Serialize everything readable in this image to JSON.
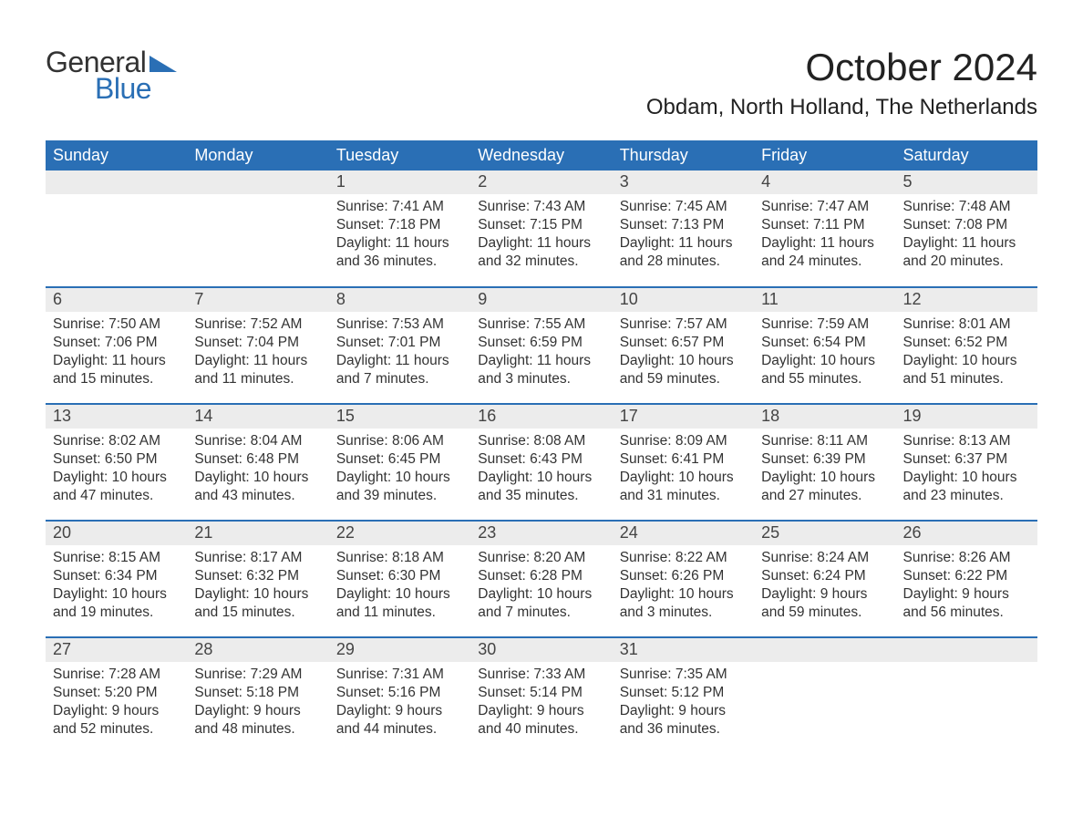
{
  "colors": {
    "header_bg": "#2a6fb5",
    "header_text": "#ffffff",
    "daynum_bg": "#ececec",
    "row_border": "#2a6fb5",
    "body_text": "#333333",
    "logo_blue": "#2a6fb5",
    "logo_dark": "#333333",
    "page_bg": "#ffffff"
  },
  "typography": {
    "month_title_size_pt": 32,
    "location_size_pt": 18,
    "weekday_size_pt": 14,
    "daynum_size_pt": 14,
    "body_size_pt": 12,
    "font_family": "Arial"
  },
  "logo": {
    "general": "General",
    "blue": "Blue"
  },
  "title": "October 2024",
  "location": "Obdam, North Holland, The Netherlands",
  "weekdays": [
    "Sunday",
    "Monday",
    "Tuesday",
    "Wednesday",
    "Thursday",
    "Friday",
    "Saturday"
  ],
  "labels": {
    "sunrise": "Sunrise:",
    "sunset": "Sunset:",
    "daylight": "Daylight:"
  },
  "weeks": [
    [
      {
        "n": "",
        "sr": "",
        "ss": "",
        "dl": ""
      },
      {
        "n": "",
        "sr": "",
        "ss": "",
        "dl": ""
      },
      {
        "n": "1",
        "sr": "7:41 AM",
        "ss": "7:18 PM",
        "dl": "11 hours and 36 minutes."
      },
      {
        "n": "2",
        "sr": "7:43 AM",
        "ss": "7:15 PM",
        "dl": "11 hours and 32 minutes."
      },
      {
        "n": "3",
        "sr": "7:45 AM",
        "ss": "7:13 PM",
        "dl": "11 hours and 28 minutes."
      },
      {
        "n": "4",
        "sr": "7:47 AM",
        "ss": "7:11 PM",
        "dl": "11 hours and 24 minutes."
      },
      {
        "n": "5",
        "sr": "7:48 AM",
        "ss": "7:08 PM",
        "dl": "11 hours and 20 minutes."
      }
    ],
    [
      {
        "n": "6",
        "sr": "7:50 AM",
        "ss": "7:06 PM",
        "dl": "11 hours and 15 minutes."
      },
      {
        "n": "7",
        "sr": "7:52 AM",
        "ss": "7:04 PM",
        "dl": "11 hours and 11 minutes."
      },
      {
        "n": "8",
        "sr": "7:53 AM",
        "ss": "7:01 PM",
        "dl": "11 hours and 7 minutes."
      },
      {
        "n": "9",
        "sr": "7:55 AM",
        "ss": "6:59 PM",
        "dl": "11 hours and 3 minutes."
      },
      {
        "n": "10",
        "sr": "7:57 AM",
        "ss": "6:57 PM",
        "dl": "10 hours and 59 minutes."
      },
      {
        "n": "11",
        "sr": "7:59 AM",
        "ss": "6:54 PM",
        "dl": "10 hours and 55 minutes."
      },
      {
        "n": "12",
        "sr": "8:01 AM",
        "ss": "6:52 PM",
        "dl": "10 hours and 51 minutes."
      }
    ],
    [
      {
        "n": "13",
        "sr": "8:02 AM",
        "ss": "6:50 PM",
        "dl": "10 hours and 47 minutes."
      },
      {
        "n": "14",
        "sr": "8:04 AM",
        "ss": "6:48 PM",
        "dl": "10 hours and 43 minutes."
      },
      {
        "n": "15",
        "sr": "8:06 AM",
        "ss": "6:45 PM",
        "dl": "10 hours and 39 minutes."
      },
      {
        "n": "16",
        "sr": "8:08 AM",
        "ss": "6:43 PM",
        "dl": "10 hours and 35 minutes."
      },
      {
        "n": "17",
        "sr": "8:09 AM",
        "ss": "6:41 PM",
        "dl": "10 hours and 31 minutes."
      },
      {
        "n": "18",
        "sr": "8:11 AM",
        "ss": "6:39 PM",
        "dl": "10 hours and 27 minutes."
      },
      {
        "n": "19",
        "sr": "8:13 AM",
        "ss": "6:37 PM",
        "dl": "10 hours and 23 minutes."
      }
    ],
    [
      {
        "n": "20",
        "sr": "8:15 AM",
        "ss": "6:34 PM",
        "dl": "10 hours and 19 minutes."
      },
      {
        "n": "21",
        "sr": "8:17 AM",
        "ss": "6:32 PM",
        "dl": "10 hours and 15 minutes."
      },
      {
        "n": "22",
        "sr": "8:18 AM",
        "ss": "6:30 PM",
        "dl": "10 hours and 11 minutes."
      },
      {
        "n": "23",
        "sr": "8:20 AM",
        "ss": "6:28 PM",
        "dl": "10 hours and 7 minutes."
      },
      {
        "n": "24",
        "sr": "8:22 AM",
        "ss": "6:26 PM",
        "dl": "10 hours and 3 minutes."
      },
      {
        "n": "25",
        "sr": "8:24 AM",
        "ss": "6:24 PM",
        "dl": "9 hours and 59 minutes."
      },
      {
        "n": "26",
        "sr": "8:26 AM",
        "ss": "6:22 PM",
        "dl": "9 hours and 56 minutes."
      }
    ],
    [
      {
        "n": "27",
        "sr": "7:28 AM",
        "ss": "5:20 PM",
        "dl": "9 hours and 52 minutes."
      },
      {
        "n": "28",
        "sr": "7:29 AM",
        "ss": "5:18 PM",
        "dl": "9 hours and 48 minutes."
      },
      {
        "n": "29",
        "sr": "7:31 AM",
        "ss": "5:16 PM",
        "dl": "9 hours and 44 minutes."
      },
      {
        "n": "30",
        "sr": "7:33 AM",
        "ss": "5:14 PM",
        "dl": "9 hours and 40 minutes."
      },
      {
        "n": "31",
        "sr": "7:35 AM",
        "ss": "5:12 PM",
        "dl": "9 hours and 36 minutes."
      },
      {
        "n": "",
        "sr": "",
        "ss": "",
        "dl": ""
      },
      {
        "n": "",
        "sr": "",
        "ss": "",
        "dl": ""
      }
    ]
  ]
}
